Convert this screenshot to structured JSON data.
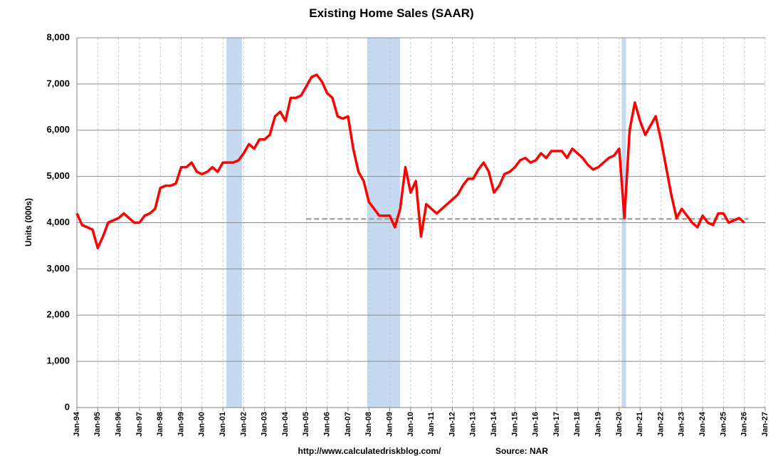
{
  "chart_data": {
    "type": "line",
    "title": "Existing Home Sales (SAAR)",
    "y_label": "Units (000s)",
    "annotations": [
      "http://www.calculatedriskblog.com/",
      "Source: NAR"
    ],
    "xlim": [
      1994,
      2027
    ],
    "xticks": [
      {
        "value": 1994,
        "label": "Jan-94"
      },
      {
        "value": 1995,
        "label": "Jan-95"
      },
      {
        "value": 1996,
        "label": "Jan-96"
      },
      {
        "value": 1997,
        "label": "Jan-97"
      },
      {
        "value": 1998,
        "label": "Jan-98"
      },
      {
        "value": 1999,
        "label": "Jan-99"
      },
      {
        "value": 2000,
        "label": "Jan-00"
      },
      {
        "value": 2001,
        "label": "Jan-01"
      },
      {
        "value": 2002,
        "label": "Jan-02"
      },
      {
        "value": 2003,
        "label": "Jan-03"
      },
      {
        "value": 2004,
        "label": "Jan-04"
      },
      {
        "value": 2005,
        "label": "Jan-05"
      },
      {
        "value": 2006,
        "label": "Jan-06"
      },
      {
        "value": 2007,
        "label": "Jan-07"
      },
      {
        "value": 2008,
        "label": "Jan-08"
      },
      {
        "value": 2009,
        "label": "Jan-09"
      },
      {
        "value": 2010,
        "label": "Jan-10"
      },
      {
        "value": 2011,
        "label": "Jan-11"
      },
      {
        "value": 2012,
        "label": "Jan-12"
      },
      {
        "value": 2013,
        "label": "Jan-13"
      },
      {
        "value": 2014,
        "label": "Jan-14"
      },
      {
        "value": 2015,
        "label": "Jan-15"
      },
      {
        "value": 2016,
        "label": "Jan-16"
      },
      {
        "value": 2017,
        "label": "Jan-17"
      },
      {
        "value": 2018,
        "label": "Jan-18"
      },
      {
        "value": 2019,
        "label": "Jan-19"
      },
      {
        "value": 2020,
        "label": "Jan-20"
      },
      {
        "value": 2021,
        "label": "Jan-21"
      },
      {
        "value": 2022,
        "label": "Jan-22"
      },
      {
        "value": 2023,
        "label": "Jan-23"
      },
      {
        "value": 2024,
        "label": "Jan-24"
      },
      {
        "value": 2025,
        "label": "Jan-25"
      },
      {
        "value": 2026,
        "label": "Jan-26"
      },
      {
        "value": 2027,
        "label": "Jan-27"
      }
    ],
    "ylim": [
      0,
      8000
    ],
    "yticks": [
      0,
      {
        "value": 1000,
        "label": "1,000"
      },
      {
        "value": 2000,
        "label": "2,000"
      },
      {
        "value": 3000,
        "label": "3,000"
      },
      {
        "value": 4000,
        "label": "4,000"
      },
      {
        "value": 5000,
        "label": "5,000"
      },
      {
        "value": 6000,
        "label": "6,000"
      },
      {
        "value": 7000,
        "label": "7,000"
      },
      {
        "value": 8000,
        "label": "8,000"
      }
    ],
    "grid": true,
    "recessions": [
      {
        "start": 2001.17,
        "end": 2001.92
      },
      {
        "start": 2007.92,
        "end": 2009.5
      },
      {
        "start": 2020.12,
        "end": 2020.33
      }
    ],
    "recession_color": "#c5d9f1",
    "reference_line": {
      "value": 4080,
      "start": 2005,
      "end": 2026.2,
      "color": "#a6a6a6"
    },
    "x": [
      1994,
      1994.25,
      1994.5,
      1994.75,
      1995,
      1995.25,
      1995.5,
      1995.75,
      1996,
      1996.25,
      1996.5,
      1996.75,
      1997,
      1997.25,
      1997.5,
      1997.75,
      1998,
      1998.25,
      1998.5,
      1998.75,
      1999,
      1999.25,
      1999.5,
      1999.75,
      2000,
      2000.25,
      2000.5,
      2000.75,
      2001,
      2001.25,
      2001.5,
      2001.75,
      2002,
      2002.25,
      2002.5,
      2002.75,
      2003,
      2003.25,
      2003.5,
      2003.75,
      2004,
      2004.25,
      2004.5,
      2004.75,
      2005,
      2005.25,
      2005.5,
      2005.75,
      2006,
      2006.25,
      2006.5,
      2006.75,
      2007,
      2007.25,
      2007.5,
      2007.75,
      2008,
      2008.25,
      2008.5,
      2008.75,
      2009,
      2009.25,
      2009.5,
      2009.75,
      2010,
      2010.25,
      2010.5,
      2010.75,
      2011,
      2011.25,
      2011.5,
      2011.75,
      2012,
      2012.25,
      2012.5,
      2012.75,
      2013,
      2013.25,
      2013.5,
      2013.75,
      2014,
      2014.25,
      2014.5,
      2014.75,
      2015,
      2015.25,
      2015.5,
      2015.75,
      2016,
      2016.25,
      2016.5,
      2016.75,
      2017,
      2017.25,
      2017.5,
      2017.75,
      2018,
      2018.25,
      2018.5,
      2018.75,
      2019,
      2019.25,
      2019.5,
      2019.75,
      2020,
      2020.25,
      2020.5,
      2020.75,
      2021,
      2021.25,
      2021.5,
      2021.75,
      2022,
      2022.25,
      2022.5,
      2022.75,
      2023,
      2023.25,
      2023.5,
      2023.75,
      2024,
      2024.25,
      2024.5,
      2024.75,
      2025,
      2025.25,
      2025.5,
      2025.75,
      2026
    ],
    "series": [
      {
        "name": "Existing Home Sales",
        "color": "#ff0000",
        "values": [
          4200,
          3950,
          3900,
          3850,
          3450,
          3700,
          4000,
          4050,
          4100,
          4200,
          4100,
          4000,
          4000,
          4150,
          4200,
          4300,
          4750,
          4800,
          4800,
          4850,
          5200,
          5200,
          5300,
          5100,
          5050,
          5100,
          5200,
          5100,
          5300,
          5300,
          5300,
          5350,
          5500,
          5700,
          5600,
          5800,
          5800,
          5900,
          6300,
          6400,
          6200,
          6700,
          6700,
          6750,
          6950,
          7150,
          7200,
          7050,
          6800,
          6700,
          6300,
          6250,
          6300,
          5600,
          5100,
          4900,
          4450,
          4300,
          4150,
          4150,
          4150,
          3900,
          4300,
          5200,
          4650,
          4900,
          3700,
          4400,
          4300,
          4200,
          4300,
          4400,
          4500,
          4600,
          4800,
          4950,
          4950,
          5150,
          5300,
          5100,
          4650,
          4800,
          5050,
          5100,
          5200,
          5350,
          5400,
          5300,
          5350,
          5500,
          5400,
          5550,
          5550,
          5550,
          5400,
          5600,
          5500,
          5400,
          5250,
          5150,
          5200,
          5300,
          5400,
          5450,
          5600,
          4100,
          6000,
          6600,
          6200,
          5900,
          6100,
          6300,
          5800,
          5200,
          4600,
          4100,
          4300,
          4150,
          4000,
          3900,
          4150,
          4000,
          3950,
          4200,
          4200,
          4000,
          4050,
          4100,
          4000
        ]
      }
    ]
  }
}
